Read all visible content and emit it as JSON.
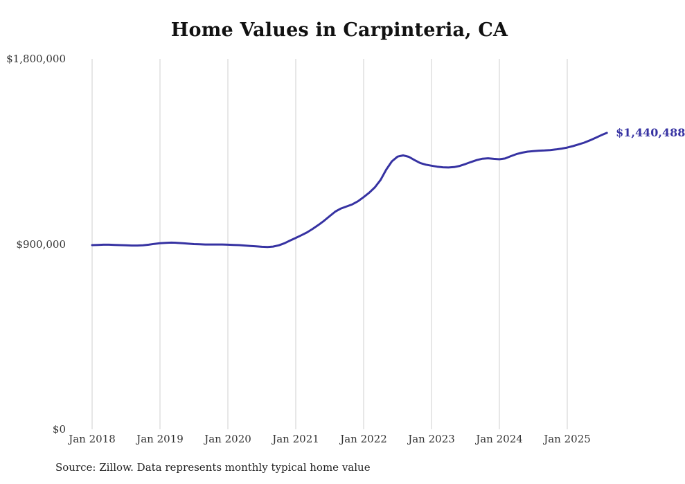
{
  "title": "Home Values in Carpinteria, CA",
  "source": "Source: Zillow. Data represents monthly typical home value",
  "end_label": "$1,440,488",
  "colors": {
    "line": "#3632a2",
    "grid": "#cfcfcf",
    "axis_text": "#333333",
    "title_text": "#111111"
  },
  "chart_data": {
    "type": "line",
    "series_name": "Monthly typical home value",
    "x_start": "2018-01",
    "x_interval": "monthly",
    "x_end": "2025-08",
    "values": [
      895000,
      896000,
      897000,
      897000,
      896000,
      895000,
      894000,
      893000,
      893000,
      894000,
      897000,
      901000,
      904000,
      906000,
      907000,
      906000,
      904000,
      902000,
      900000,
      899000,
      898000,
      898000,
      898000,
      898000,
      897000,
      896000,
      895000,
      893000,
      891000,
      889000,
      887000,
      886000,
      888000,
      894000,
      904000,
      917000,
      930000,
      943000,
      957000,
      974000,
      993000,
      1013000,
      1036000,
      1058000,
      1073000,
      1083000,
      1093000,
      1108000,
      1128000,
      1150000,
      1176000,
      1212000,
      1262000,
      1302000,
      1325000,
      1331000,
      1324000,
      1308000,
      1294000,
      1286000,
      1281000,
      1276000,
      1273000,
      1272000,
      1274000,
      1280000,
      1289000,
      1299000,
      1308000,
      1315000,
      1317000,
      1314000,
      1312000,
      1316000,
      1327000,
      1337000,
      1344000,
      1349000,
      1352000,
      1354000,
      1355000,
      1357000,
      1360000,
      1364000,
      1369000,
      1376000,
      1384000,
      1393000,
      1404000,
      1416000,
      1429000,
      1440488
    ],
    "last_value": 1440488,
    "x_tick_labels": [
      "Jan 2018",
      "Jan 2019",
      "Jan 2020",
      "Jan 2021",
      "Jan 2022",
      "Jan 2023",
      "Jan 2024",
      "Jan 2025"
    ],
    "x_tick_every_n_points": 12,
    "y_ticks": [
      {
        "value": 0,
        "label": "$0"
      },
      {
        "value": 900000,
        "label": "$900,000"
      },
      {
        "value": 1800000,
        "label": "$1,800,000"
      }
    ],
    "ylim": [
      0,
      1800000
    ],
    "grid": "vertical-only",
    "legend": "none"
  }
}
